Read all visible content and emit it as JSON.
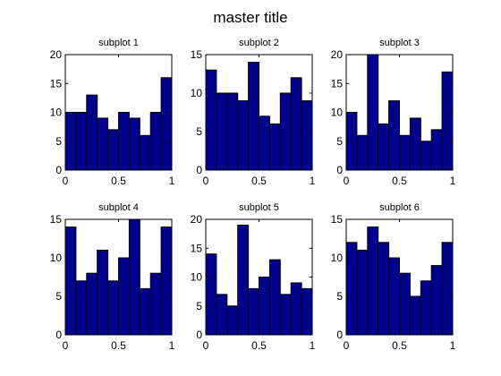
{
  "figure": {
    "title": "master title"
  },
  "colors": {
    "bar_fill": "#00008f",
    "bar_edge": "#000000",
    "axes": "#000000",
    "background": "#ffffff"
  },
  "chart_data": [
    {
      "type": "bar",
      "title": "subplot 1",
      "x": [
        0.05,
        0.15,
        0.25,
        0.35,
        0.45,
        0.55,
        0.65,
        0.75,
        0.85,
        0.95
      ],
      "values": [
        10,
        10,
        13,
        9,
        7,
        10,
        9,
        6,
        10,
        16
      ],
      "xlim": [
        0,
        1
      ],
      "ylim": [
        0,
        20
      ],
      "xticks": [
        "0",
        "0.5",
        "1"
      ],
      "yticks": [
        "0",
        "5",
        "10",
        "15",
        "20"
      ],
      "grid": false
    },
    {
      "type": "bar",
      "title": "subplot 2",
      "x": [
        0.05,
        0.15,
        0.25,
        0.35,
        0.45,
        0.55,
        0.65,
        0.75,
        0.85,
        0.95
      ],
      "values": [
        13,
        10,
        10,
        9,
        14,
        7,
        6,
        10,
        12,
        9
      ],
      "xlim": [
        0,
        1
      ],
      "ylim": [
        0,
        15
      ],
      "xticks": [
        "0",
        "0.5",
        "1"
      ],
      "yticks": [
        "0",
        "5",
        "10",
        "15"
      ],
      "grid": false
    },
    {
      "type": "bar",
      "title": "subplot 3",
      "x": [
        0.05,
        0.15,
        0.25,
        0.35,
        0.45,
        0.55,
        0.65,
        0.75,
        0.85,
        0.95
      ],
      "values": [
        10,
        6,
        20,
        8,
        12,
        6,
        9,
        5,
        7,
        17
      ],
      "xlim": [
        0,
        1
      ],
      "ylim": [
        0,
        20
      ],
      "xticks": [
        "0",
        "0.5",
        "1"
      ],
      "yticks": [
        "0",
        "5",
        "10",
        "15",
        "20"
      ],
      "grid": false
    },
    {
      "type": "bar",
      "title": "subplot 4",
      "x": [
        0.05,
        0.15,
        0.25,
        0.35,
        0.45,
        0.55,
        0.65,
        0.75,
        0.85,
        0.95
      ],
      "values": [
        14,
        7,
        8,
        11,
        7,
        10,
        15,
        6,
        8,
        14
      ],
      "xlim": [
        0,
        1
      ],
      "ylim": [
        0,
        15
      ],
      "xticks": [
        "0",
        "0.5",
        "1"
      ],
      "yticks": [
        "0",
        "5",
        "10",
        "15"
      ],
      "grid": false
    },
    {
      "type": "bar",
      "title": "subplot 5",
      "x": [
        0.05,
        0.15,
        0.25,
        0.35,
        0.45,
        0.55,
        0.65,
        0.75,
        0.85,
        0.95
      ],
      "values": [
        14,
        7,
        5,
        19,
        8,
        10,
        13,
        7,
        9,
        8
      ],
      "xlim": [
        0,
        1
      ],
      "ylim": [
        0,
        20
      ],
      "xticks": [
        "0",
        "0.5",
        "1"
      ],
      "yticks": [
        "0",
        "5",
        "10",
        "15",
        "20"
      ],
      "grid": false
    },
    {
      "type": "bar",
      "title": "subplot 6",
      "x": [
        0.05,
        0.15,
        0.25,
        0.35,
        0.45,
        0.55,
        0.65,
        0.75,
        0.85,
        0.95
      ],
      "values": [
        12,
        11,
        14,
        12,
        10,
        8,
        5,
        7,
        9,
        12
      ],
      "xlim": [
        0,
        1
      ],
      "ylim": [
        0,
        15
      ],
      "xticks": [
        "0",
        "0.5",
        "1"
      ],
      "yticks": [
        "0",
        "5",
        "10",
        "15"
      ],
      "grid": false
    }
  ]
}
